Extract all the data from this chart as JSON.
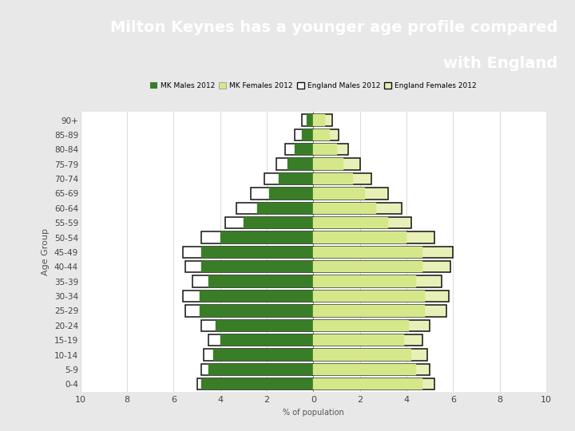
{
  "title_line1": "Milton Keynes has a younger age profile compared",
  "title_line2": "with England",
  "title_bg": "#6ab04c",
  "title_color": "white",
  "gray_bar_bg": "#999999",
  "chart_bg": "#ffffff",
  "outer_bg": "#e8e8e8",
  "age_groups": [
    "0-4",
    "5-9",
    "10-14",
    "15-19",
    "20-24",
    "25-29",
    "30-34",
    "35-39",
    "40-44",
    "45-49",
    "50-54",
    "55-59",
    "60-64",
    "65-69",
    "70-74",
    "75-79",
    "80-84",
    "85-89",
    "90+"
  ],
  "mk_males": [
    4.8,
    4.5,
    4.3,
    4.0,
    4.2,
    4.9,
    4.9,
    4.5,
    4.8,
    4.8,
    4.0,
    3.0,
    2.4,
    1.9,
    1.5,
    1.1,
    0.8,
    0.5,
    0.3
  ],
  "mk_females": [
    4.7,
    4.4,
    4.2,
    3.9,
    4.1,
    4.8,
    4.8,
    4.4,
    4.7,
    4.7,
    4.0,
    3.2,
    2.7,
    2.2,
    1.7,
    1.3,
    1.0,
    0.7,
    0.5
  ],
  "eng_males": [
    5.0,
    4.8,
    4.7,
    4.5,
    4.8,
    5.5,
    5.6,
    5.2,
    5.5,
    5.6,
    4.8,
    3.8,
    3.3,
    2.7,
    2.1,
    1.6,
    1.2,
    0.8,
    0.5
  ],
  "eng_females": [
    5.2,
    5.0,
    4.9,
    4.7,
    5.0,
    5.7,
    5.8,
    5.5,
    5.9,
    6.0,
    5.2,
    4.2,
    3.8,
    3.2,
    2.5,
    2.0,
    1.5,
    1.1,
    0.8
  ],
  "mk_male_color": "#3a7d27",
  "mk_female_color": "#d4e88a",
  "eng_male_color": "#ffffff",
  "eng_female_color": "#e8f0b8",
  "eng_edge_color": "#111111",
  "xlim": 10,
  "xlabel": "% of population",
  "ylabel": "Age Group",
  "legend_labels": [
    "MK Males 2012",
    "MK Females 2012",
    "England Males 2012",
    "England Females 2012"
  ],
  "bar_height": 0.78
}
